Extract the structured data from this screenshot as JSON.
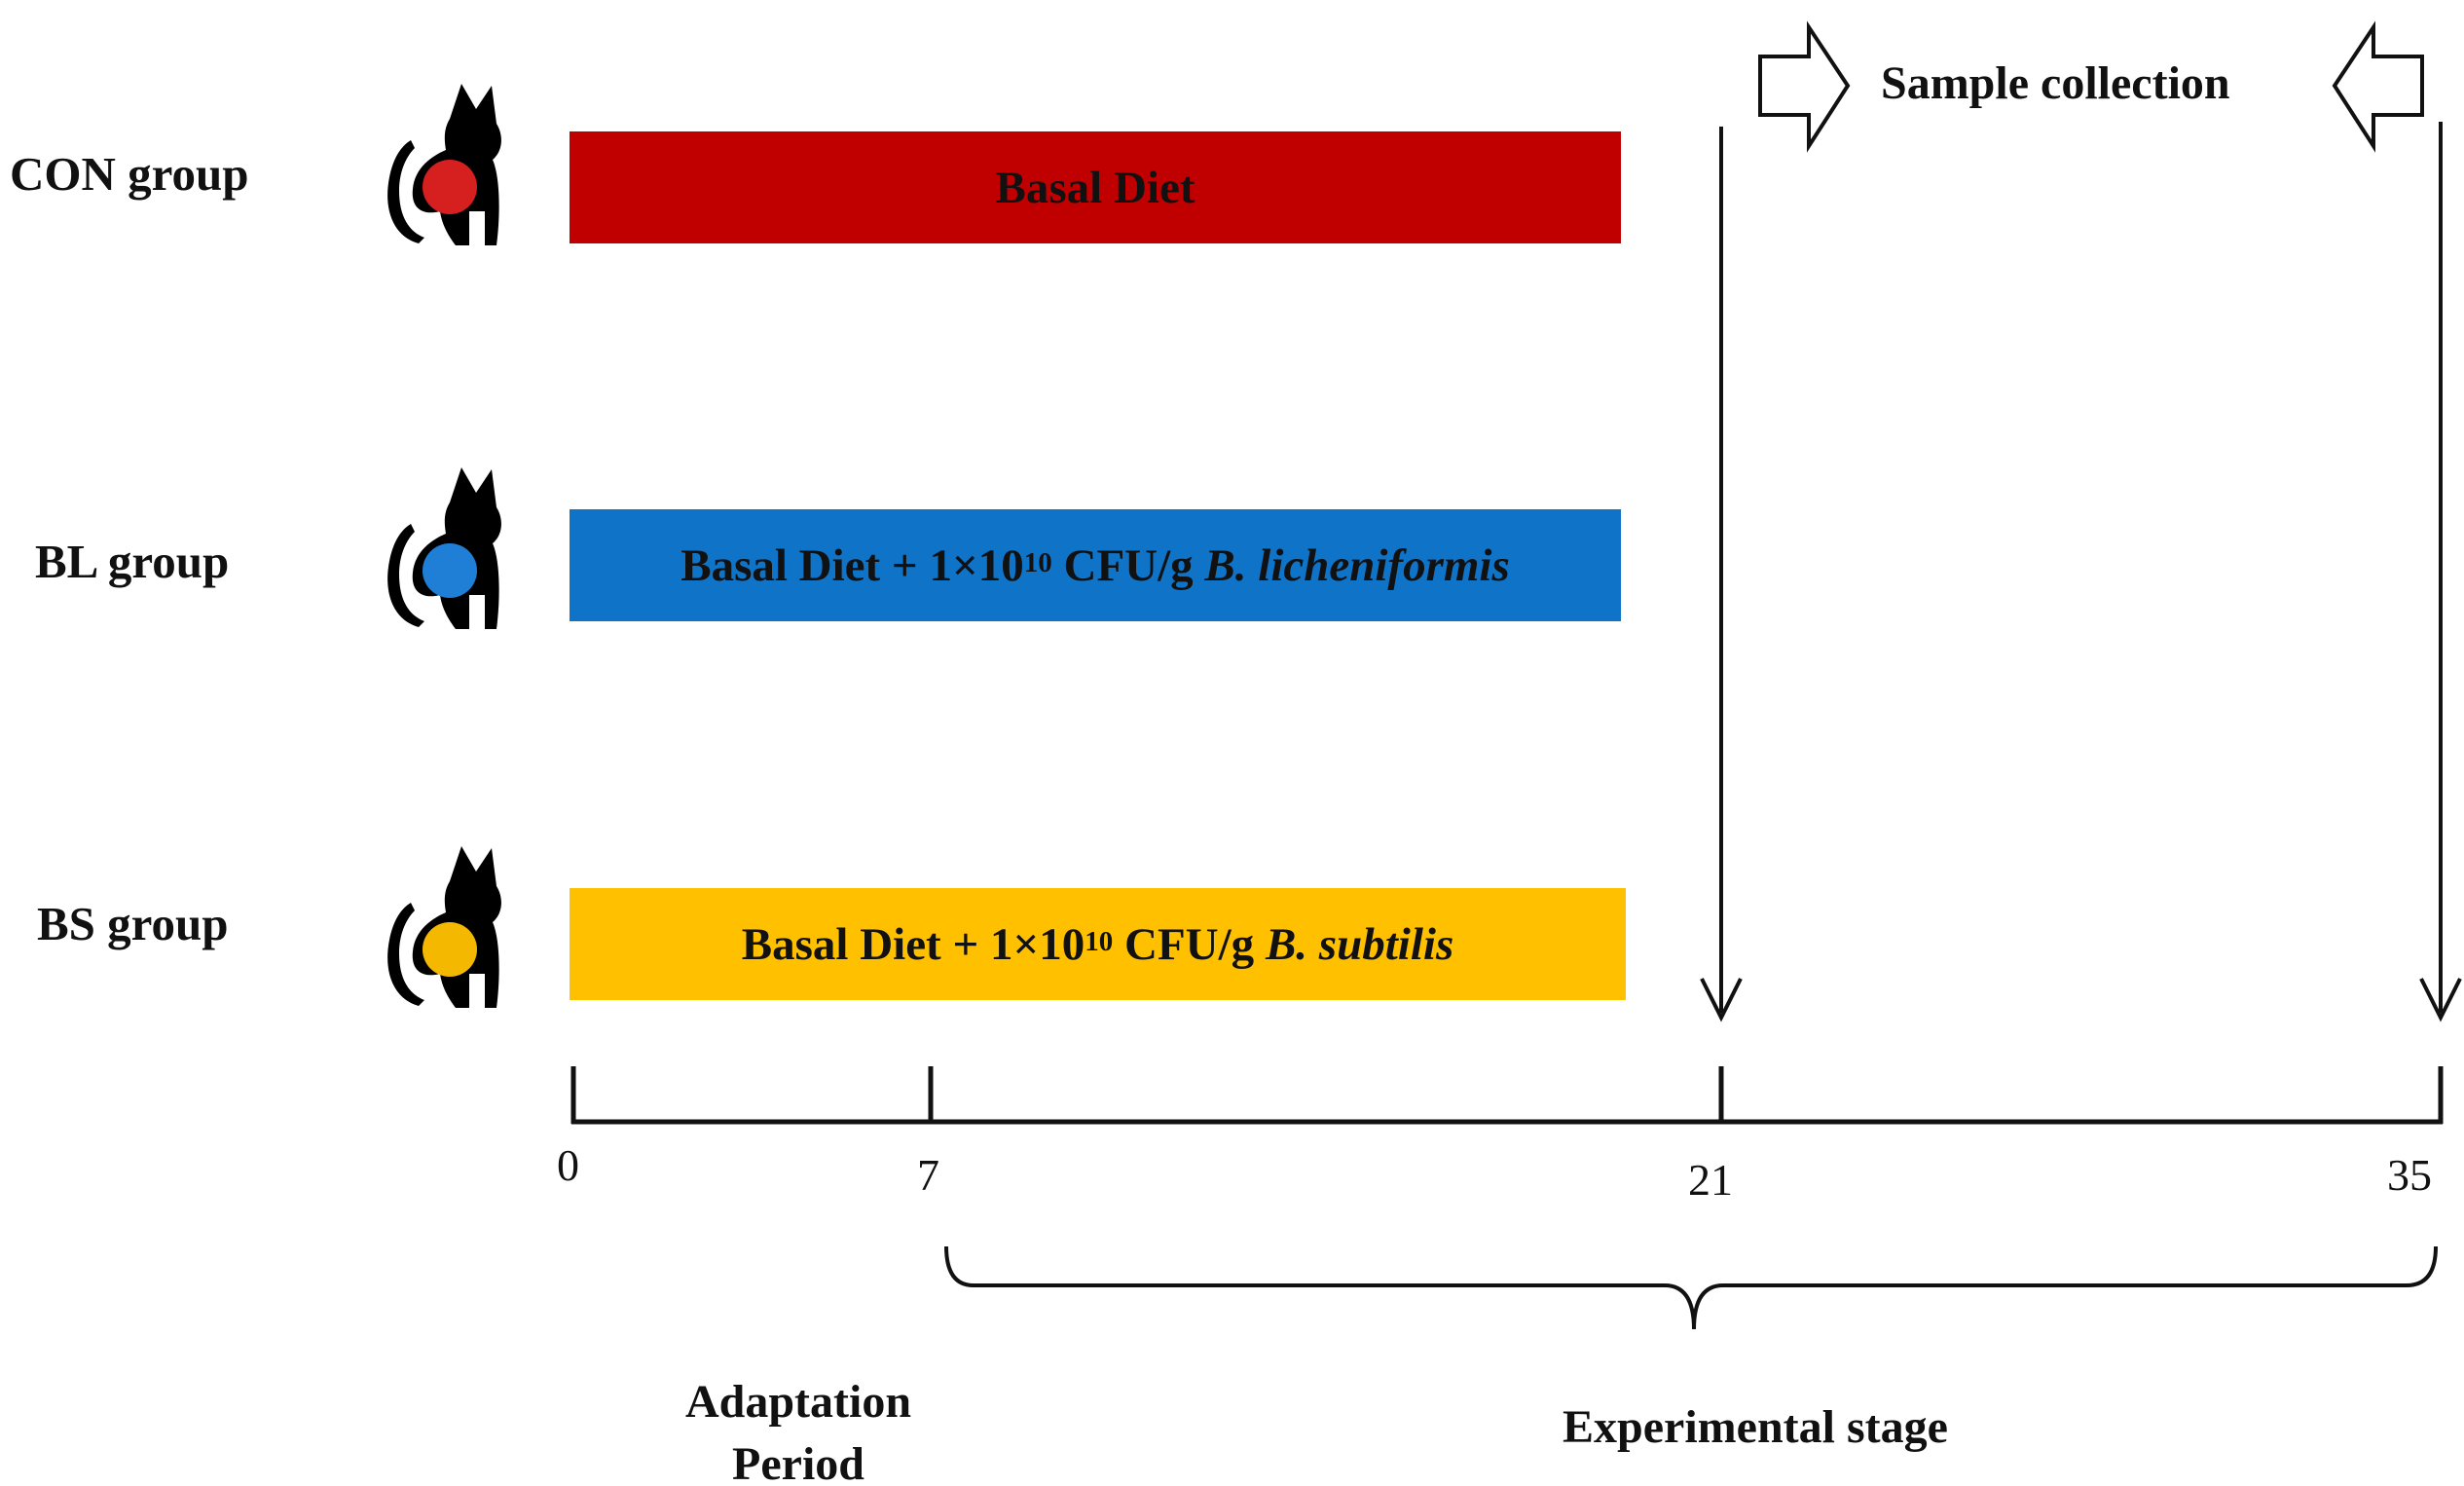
{
  "groups": [
    {
      "label": "CON group",
      "bar_text": "Basal Diet",
      "sup": "",
      "organism": "",
      "color": "#c00000",
      "dot_color": "#d61f1f"
    },
    {
      "label": "BL group",
      "bar_text": "Basal Diet + 1×10",
      "sup": "10",
      "cfu": " CFU/g ",
      "organism": "B. licheniformis",
      "color": "#0f73c8",
      "dot_color": "#1f7fd6"
    },
    {
      "label": "BS group",
      "bar_text": "Basal Diet + 1×10",
      "sup": "10",
      "cfu": " CFU/g ",
      "organism": "B. subtilis",
      "color": "#ffc000",
      "dot_color": "#f5b800"
    }
  ],
  "timeline": {
    "days": [
      "0",
      "7",
      "21",
      "35"
    ]
  },
  "sample_collection": {
    "label": "Sample collection"
  },
  "stages": {
    "adaptation_line1": "Adaptation",
    "adaptation_line2": "Period",
    "experimental": "Experimental stage"
  },
  "icons": {
    "cat": "cat-icon",
    "arrow_right": "hollow-arrow-right-icon",
    "arrow_left": "hollow-arrow-left-icon",
    "arrow_down": "arrow-down-icon"
  }
}
